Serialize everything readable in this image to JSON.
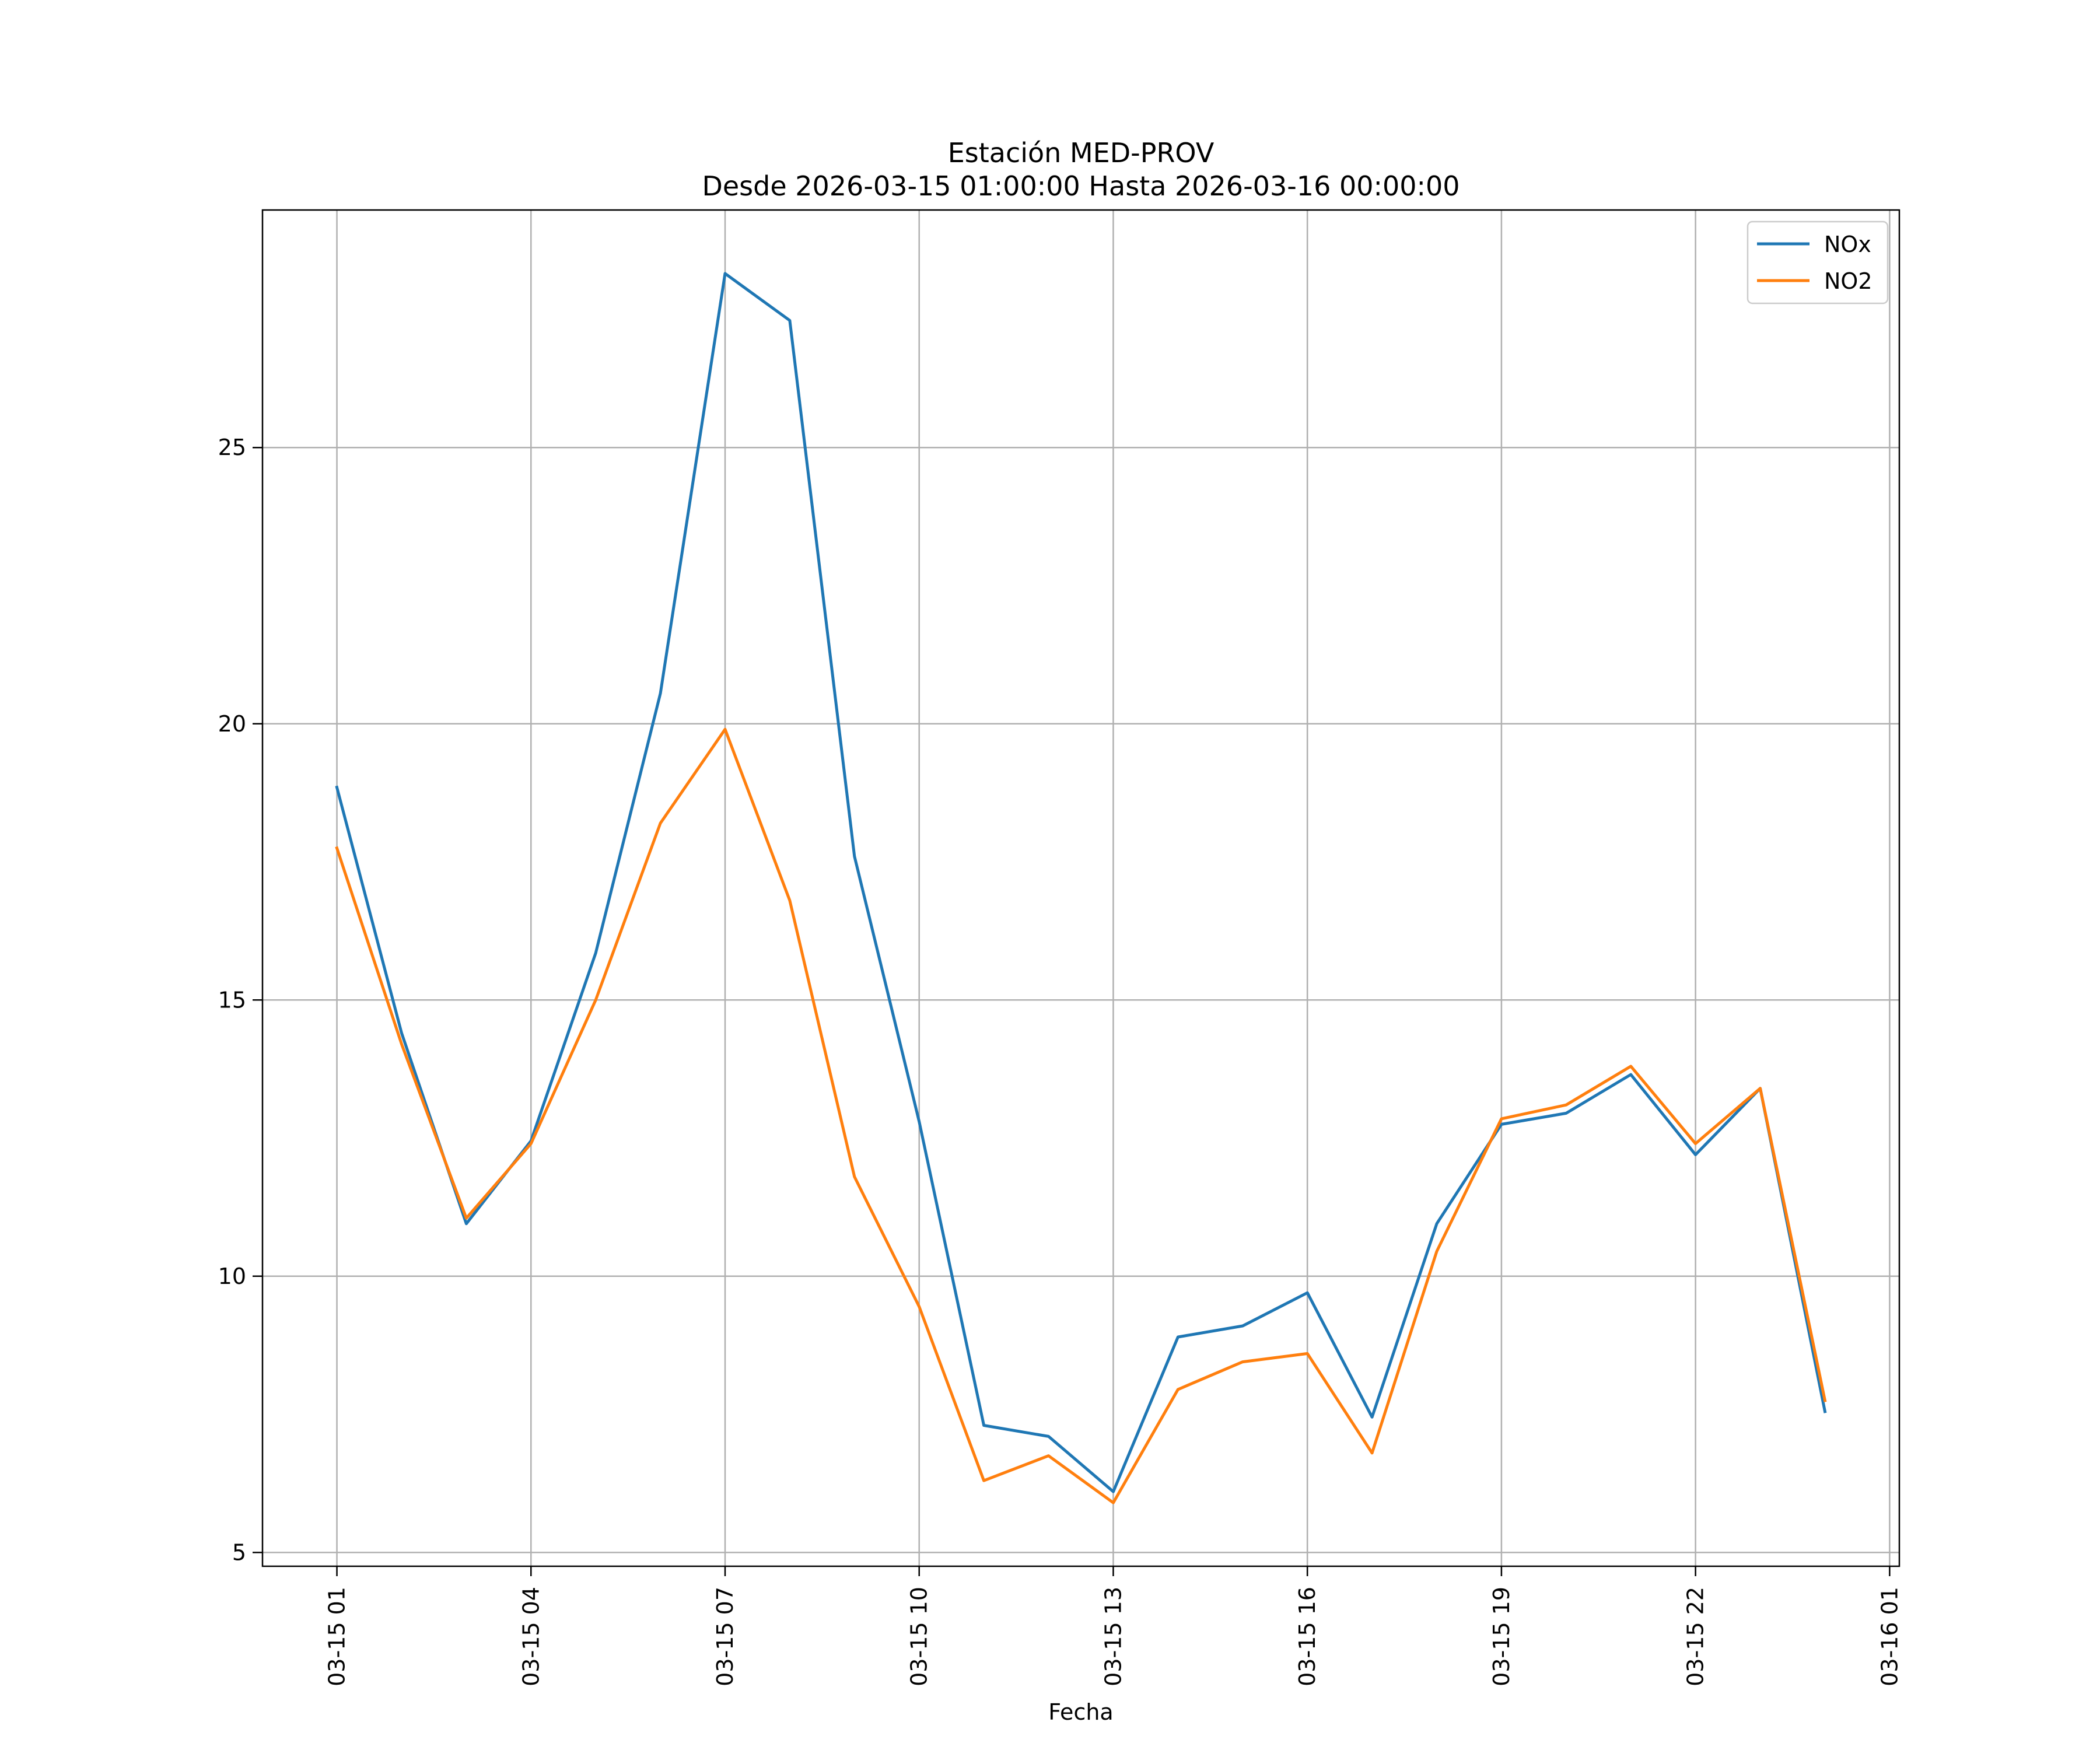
{
  "chart_data": {
    "type": "line",
    "title": "Estación MED-PROV",
    "subtitle": "Desde 2026-03-15 01:00:00 Hasta 2026-03-16 00:00:00",
    "xlabel": "Fecha",
    "ylabel": "",
    "x": [
      "2026-03-15 01:00",
      "2026-03-15 02:00",
      "2026-03-15 03:00",
      "2026-03-15 04:00",
      "2026-03-15 05:00",
      "2026-03-15 06:00",
      "2026-03-15 07:00",
      "2026-03-15 08:00",
      "2026-03-15 09:00",
      "2026-03-15 10:00",
      "2026-03-15 11:00",
      "2026-03-15 12:00",
      "2026-03-15 13:00",
      "2026-03-15 14:00",
      "2026-03-15 15:00",
      "2026-03-15 16:00",
      "2026-03-15 17:00",
      "2026-03-15 18:00",
      "2026-03-15 19:00",
      "2026-03-15 20:00",
      "2026-03-15 21:00",
      "2026-03-15 22:00",
      "2026-03-15 23:00",
      "2026-03-16 00:00"
    ],
    "series": [
      {
        "name": "NOx",
        "color": "#1f77b4",
        "values": [
          18.85,
          14.4,
          10.95,
          12.45,
          15.85,
          20.55,
          28.15,
          27.3,
          17.6,
          12.8,
          7.3,
          7.1,
          6.1,
          8.9,
          9.1,
          9.7,
          7.45,
          10.95,
          12.75,
          12.95,
          13.65,
          12.2,
          13.4,
          7.55
        ]
      },
      {
        "name": "NO2",
        "color": "#ff7f0e",
        "values": [
          17.75,
          14.2,
          11.05,
          12.4,
          15.0,
          18.2,
          19.9,
          16.8,
          11.8,
          9.45,
          6.3,
          6.75,
          5.9,
          7.95,
          8.45,
          8.6,
          6.8,
          10.45,
          12.85,
          13.1,
          13.8,
          12.4,
          13.4,
          7.75
        ]
      }
    ],
    "x_ticks": [
      "03-15 01",
      "03-15 04",
      "03-15 07",
      "03-15 10",
      "03-15 13",
      "03-15 16",
      "03-15 19",
      "03-15 22",
      "03-16 01"
    ],
    "y_ticks": [
      "5",
      "10",
      "15",
      "20",
      "25"
    ],
    "ylim": [
      4.75,
      29.3
    ],
    "xlim": [
      "2026-03-14 23:51",
      "2026-03-16 01:09"
    ],
    "grid": true,
    "legend_position": "top-right"
  }
}
